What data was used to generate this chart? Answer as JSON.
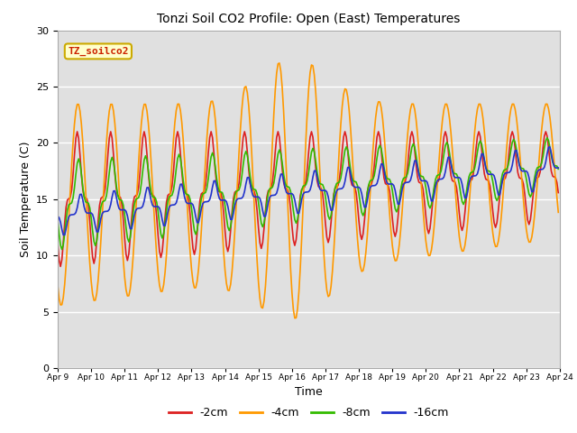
{
  "title": "Tonzi Soil CO2 Profile: Open (East) Temperatures",
  "xlabel": "Time",
  "ylabel": "Soil Temperature (C)",
  "ylim": [
    0,
    30
  ],
  "yticks": [
    0,
    5,
    10,
    15,
    20,
    25,
    30
  ],
  "plot_bg": "#e0e0e0",
  "fig_bg": "#ffffff",
  "legend_label": "TZ_soilco2",
  "legend_box_color": "#ffffcc",
  "legend_box_edge": "#ccaa00",
  "legend_text_color": "#cc2200",
  "series": [
    {
      "label": "-2cm",
      "color": "#dd2020",
      "lw": 1.2
    },
    {
      "label": "-4cm",
      "color": "#ff9900",
      "lw": 1.2
    },
    {
      "label": "-8cm",
      "color": "#33bb00",
      "lw": 1.2
    },
    {
      "label": "-16cm",
      "color": "#2233cc",
      "lw": 1.2
    }
  ],
  "start_day": 9,
  "end_day": 24,
  "hours_per_day": 24,
  "grid_color": "#ffffff",
  "grid_lw": 1.0
}
